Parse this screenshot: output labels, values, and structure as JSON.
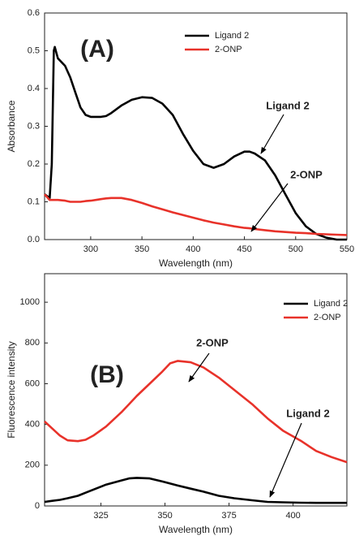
{
  "chart_data": [
    {
      "type": "line",
      "xlabel": "Wavelength (nm)",
      "ylabel": "Absorbance",
      "annotations": [
        "(A)",
        "Ligand 2",
        "2-ONP"
      ],
      "x": [
        255,
        260,
        262,
        264,
        265,
        268,
        275,
        280,
        285,
        290,
        295,
        300,
        305,
        310,
        315,
        320,
        330,
        340,
        350,
        360,
        370,
        380,
        390,
        400,
        410,
        420,
        430,
        440,
        450,
        455,
        460,
        470,
        480,
        490,
        500,
        510,
        520,
        530,
        540,
        550
      ],
      "series": [
        {
          "name": "Ligand 2",
          "color": "#000000",
          "values": [
            0.12,
            0.11,
            0.2,
            0.5,
            0.51,
            0.48,
            0.46,
            0.43,
            0.39,
            0.35,
            0.33,
            0.325,
            0.325,
            0.325,
            0.327,
            0.335,
            0.355,
            0.37,
            0.377,
            0.375,
            0.36,
            0.33,
            0.28,
            0.235,
            0.2,
            0.19,
            0.2,
            0.22,
            0.233,
            0.233,
            0.228,
            0.21,
            0.17,
            0.12,
            0.07,
            0.035,
            0.015,
            0.005,
            0,
            0
          ]
        },
        {
          "name": "2-ONP",
          "color": "#e8322a",
          "values": [
            0.12,
            0.105,
            0.105,
            0.105,
            0.105,
            0.105,
            0.103,
            0.1,
            0.1,
            0.1,
            0.102,
            0.103,
            0.105,
            0.107,
            0.109,
            0.11,
            0.11,
            0.105,
            0.097,
            0.088,
            0.08,
            0.072,
            0.065,
            0.058,
            0.051,
            0.045,
            0.04,
            0.035,
            0.031,
            0.03,
            0.028,
            0.025,
            0.022,
            0.02,
            0.018,
            0.017,
            0.015,
            0.014,
            0.013,
            0.012
          ]
        }
      ],
      "xlim": [
        255,
        550
      ],
      "xticks": [
        300,
        350,
        400,
        450,
        500,
        550
      ],
      "ylim": [
        0,
        0.6
      ],
      "yticks": [
        {
          "value": 0,
          "label": "0.0"
        },
        0.1,
        0.2,
        0.3,
        0.4,
        0.5,
        0.6
      ],
      "legend": "upper center"
    },
    {
      "type": "line",
      "xlabel": "Wavelength (nm)",
      "ylabel": "Fluorescence intensity",
      "annotations": [
        "(B)",
        "2-ONP",
        "Ligand 2"
      ],
      "x": [
        303,
        306,
        309,
        312,
        316,
        319,
        322,
        327,
        333,
        336,
        339,
        344,
        349,
        352,
        355,
        360,
        365,
        371,
        377,
        384,
        390,
        396,
        403,
        409,
        415,
        421
      ],
      "series": [
        {
          "name": "Ligand 2",
          "color": "#000000",
          "values": [
            20,
            25,
            30,
            38,
            50,
            65,
            80,
            105,
            125,
            135,
            138,
            135,
            120,
            110,
            100,
            85,
            70,
            50,
            38,
            28,
            20,
            18,
            16,
            15,
            15,
            15
          ]
        },
        {
          "name": "2-ONP",
          "color": "#e8322a",
          "values": [
            415,
            380,
            345,
            322,
            318,
            325,
            345,
            390,
            460,
            500,
            540,
            600,
            660,
            700,
            712,
            705,
            680,
            630,
            570,
            500,
            430,
            370,
            320,
            270,
            240,
            215
          ]
        }
      ],
      "xlim": [
        303,
        421
      ],
      "xticks": [
        325,
        350,
        375,
        400
      ],
      "ylim": [
        0,
        1140
      ],
      "yticks": [
        0,
        200,
        400,
        600,
        800,
        1000
      ],
      "legend": "upper right"
    }
  ]
}
